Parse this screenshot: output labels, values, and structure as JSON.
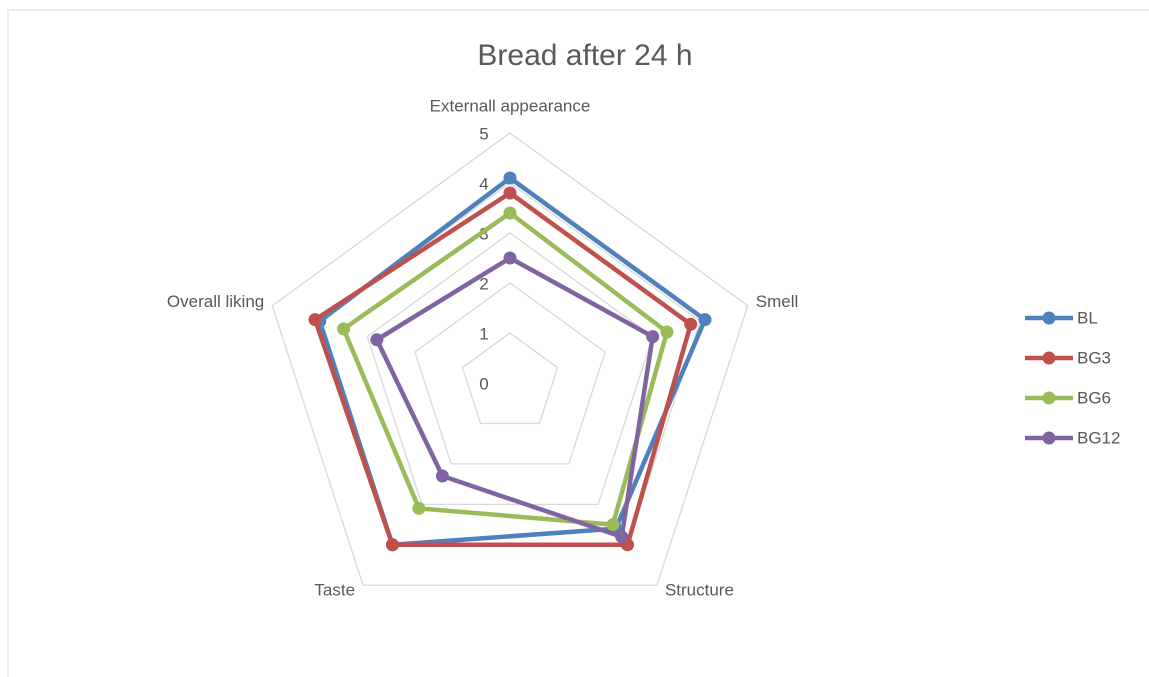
{
  "chart_data": {
    "type": "radar",
    "title": "Bread after 24 h",
    "categories": [
      "Externall appearance",
      "Smell",
      "Structure",
      "Taste",
      "Overall liking"
    ],
    "rlim": [
      0,
      5
    ],
    "rticks": [
      0,
      1,
      2,
      3,
      4,
      5
    ],
    "grid": true,
    "legend": "right",
    "series": [
      {
        "name": "BL",
        "color": "#4f81bd",
        "values": [
          4.1,
          4.1,
          3.6,
          4.0,
          4.0
        ]
      },
      {
        "name": "BG3",
        "color": "#c0504d",
        "values": [
          3.8,
          3.8,
          4.0,
          4.0,
          4.1
        ]
      },
      {
        "name": "BG6",
        "color": "#9bbb59",
        "values": [
          3.4,
          3.3,
          3.5,
          3.1,
          3.5
        ]
      },
      {
        "name": "BG12",
        "color": "#8064a2",
        "values": [
          2.5,
          3.0,
          3.8,
          2.3,
          2.8
        ]
      }
    ]
  }
}
